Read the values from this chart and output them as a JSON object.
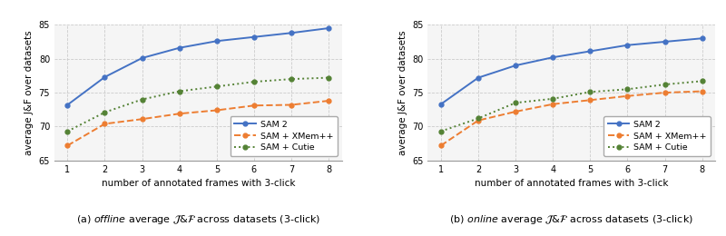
{
  "x": [
    1,
    2,
    3,
    4,
    5,
    6,
    7,
    8
  ],
  "offline": {
    "sam2": [
      73.2,
      77.3,
      80.1,
      81.6,
      82.6,
      83.2,
      83.8,
      84.5
    ],
    "xmem": [
      67.2,
      70.4,
      71.1,
      71.9,
      72.4,
      73.1,
      73.2,
      73.8
    ],
    "cutie": [
      69.3,
      72.1,
      74.0,
      75.2,
      75.9,
      76.6,
      77.0,
      77.2
    ]
  },
  "online": {
    "sam2": [
      73.3,
      77.2,
      79.0,
      80.2,
      81.1,
      82.0,
      82.5,
      83.0
    ],
    "xmem": [
      67.2,
      70.9,
      72.2,
      73.3,
      73.9,
      74.5,
      75.0,
      75.2
    ],
    "cutie": [
      69.3,
      71.2,
      73.5,
      74.1,
      75.1,
      75.5,
      76.2,
      76.7
    ]
  },
  "colors": {
    "sam2": "#4472C4",
    "xmem": "#ED7D31",
    "cutie": "#548235"
  },
  "ylim": [
    65,
    85
  ],
  "yticks": [
    65,
    70,
    75,
    80,
    85
  ],
  "xticks": [
    1,
    2,
    3,
    4,
    5,
    6,
    7,
    8
  ],
  "ylabel": "average J&F over datasets",
  "xlabel": "number of annotated frames with 3-click",
  "legend_labels": [
    "SAM 2",
    "SAM + XMem++",
    "SAM + Cutie"
  ],
  "cap_a": "(a)  offline  average    across datasets (3-click)",
  "cap_b": "(b)  online  average    across datasets (3-click)",
  "background_color": "#f5f5f5"
}
